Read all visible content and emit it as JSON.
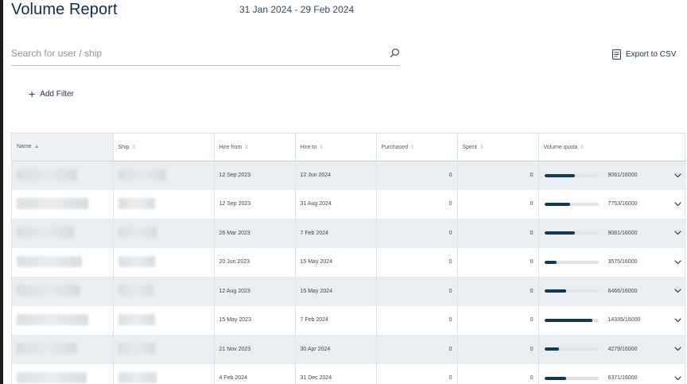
{
  "header": {
    "title": "Volume Report",
    "date_range": "31 Jan 2024 - 29 Feb 2024"
  },
  "search": {
    "placeholder": "Search for user / ship",
    "value": ""
  },
  "toolbar": {
    "export_label": "Export to CSV",
    "add_filter_label": "Add Filter"
  },
  "table": {
    "columns": [
      "Name",
      "Ship",
      "Hire from",
      "Hire to",
      "Purchased",
      "Spent",
      "Volume quota"
    ],
    "rows": [
      {
        "hire_from": "12 Sep 2023",
        "hire_to": "12 Jun 2024",
        "purchased": "0",
        "spent": "0",
        "quota": "9061/16000",
        "used": 9061,
        "total": 16000
      },
      {
        "hire_from": "12 Sep 2023",
        "hire_to": "31 Aug 2024",
        "purchased": "0",
        "spent": "0",
        "quota": "7753/16000",
        "used": 7753,
        "total": 16000
      },
      {
        "hire_from": "26 Mar 2023",
        "hire_to": "7 Feb 2024",
        "purchased": "0",
        "spent": "0",
        "quota": "9081/16000",
        "used": 9081,
        "total": 16000
      },
      {
        "hire_from": "20 Jun 2023",
        "hire_to": "15 May 2024",
        "purchased": "0",
        "spent": "0",
        "quota": "3575/16000",
        "used": 3575,
        "total": 16000
      },
      {
        "hire_from": "12 Aug 2023",
        "hire_to": "15 May 2024",
        "purchased": "0",
        "spent": "0",
        "quota": "6466/16000",
        "used": 6466,
        "total": 16000
      },
      {
        "hire_from": "15 May 2023",
        "hire_to": "7 Feb 2024",
        "purchased": "0",
        "spent": "0",
        "quota": "14335/16000",
        "used": 14335,
        "total": 16000
      },
      {
        "hire_from": "21 Nov 2023",
        "hire_to": "30 Apr 2024",
        "purchased": "0",
        "spent": "0",
        "quota": "4279/16000",
        "used": 4279,
        "total": 16000
      },
      {
        "hire_from": "4 Feb 2024",
        "hire_to": "31 Dec 2024",
        "purchased": "0",
        "spent": "0",
        "quota": "6371/16000",
        "used": 6371,
        "total": 16000
      }
    ]
  },
  "icons": {
    "search": "search-icon",
    "export": "csv-file-icon",
    "add": "plus-icon",
    "sort": "sort-arrows-icon",
    "expand": "chevron-down-icon"
  },
  "colors": {
    "accent": "#0e3a5a",
    "row_alt": "#e9eef1"
  }
}
